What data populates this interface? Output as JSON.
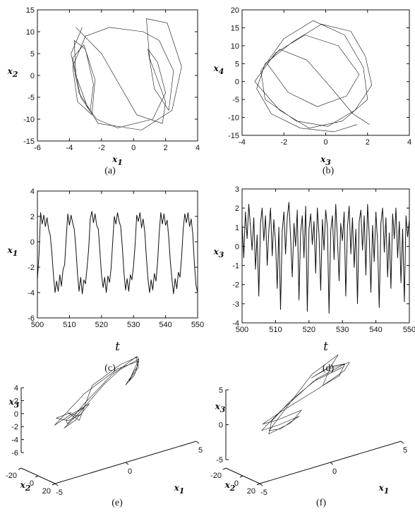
{
  "figure": {
    "panels": [
      "a",
      "b",
      "c",
      "d",
      "e",
      "f"
    ]
  },
  "chart_data": [
    {
      "id": "a",
      "caption": "(a)",
      "type": "line",
      "xlabel": "x1",
      "ylabel": "x2",
      "xlim": [
        -6,
        4
      ],
      "ylim": [
        -15,
        15
      ],
      "xticks": [
        -6,
        -4,
        -2,
        0,
        2,
        4
      ],
      "yticks": [
        -15,
        -10,
        -5,
        0,
        5,
        10,
        15
      ],
      "series": [
        {
          "x": [
            -3.2,
            -3.9,
            -3.4,
            -2.7,
            -2.5,
            -3.0,
            -3.7,
            -3.6,
            -2.9,
            -2.3,
            -1.0,
            1.2,
            2.0,
            1.5,
            0.9,
            1.3,
            2.2,
            2.5,
            1.6,
            0.6,
            -1.5,
            -3.0,
            -3.8,
            -3.5,
            -2.6,
            -2.4,
            -3.1,
            -3.8,
            -3.3,
            -2.2,
            0.5,
            2.4,
            3.0,
            2.1,
            0.8,
            1.0,
            2.0,
            1.8,
            0.2,
            -2.0,
            -3.6
          ],
          "y": [
            11.0,
            5.0,
            -4.0,
            -8.0,
            -2.0,
            6.0,
            8.0,
            0.0,
            -7.0,
            -10.0,
            -12.0,
            -10.0,
            -4.0,
            3.0,
            6.0,
            -3.0,
            -8.0,
            1.0,
            8.0,
            10.0,
            11.0,
            9.0,
            2.0,
            -6.0,
            -9.0,
            -1.0,
            7.0,
            4.0,
            -5.0,
            -11.0,
            -12.5,
            -8.0,
            2.0,
            12.0,
            13.0,
            4.0,
            -6.0,
            -11.0,
            -9.0,
            5.0,
            11.0
          ]
        }
      ]
    },
    {
      "id": "b",
      "caption": "(b)",
      "type": "line",
      "xlabel": "x3",
      "ylabel": "x4",
      "xlim": [
        -4,
        4
      ],
      "ylim": [
        -15,
        20
      ],
      "xticks": [
        -4,
        -2,
        0,
        2,
        4
      ],
      "yticks": [
        -15,
        -10,
        -5,
        0,
        5,
        10,
        15,
        20
      ],
      "series": [
        {
          "x": [
            1.5,
            0.4,
            -1.2,
            -2.6,
            -3.3,
            -2.9,
            -1.6,
            -0.2,
            1.2,
            1.9,
            2.2,
            1.4,
            0.1,
            -1.4,
            -2.9,
            -3.1,
            -2.0,
            -0.6,
            0.9,
            1.8,
            2.0,
            0.8,
            -0.8,
            -2.2,
            -3.4,
            -2.4,
            -1.0,
            0.6,
            1.6,
            1.0,
            -0.4,
            -1.8,
            -2.8,
            -2.2,
            -0.9,
            0.3,
            1.3,
            2.1
          ],
          "y": [
            -12.0,
            -14.0,
            -13.0,
            -9.0,
            -2.0,
            5.0,
            11.0,
            16.0,
            14.0,
            7.0,
            -1.0,
            -8.0,
            -12.5,
            -11.0,
            -5.0,
            3.0,
            12.0,
            17.0,
            13.0,
            4.0,
            -5.0,
            -11.0,
            -13.0,
            -8.0,
            0.0,
            8.0,
            13.0,
            10.0,
            2.0,
            -4.0,
            -7.0,
            -3.0,
            5.0,
            9.0,
            6.0,
            -2.0,
            -9.0,
            -12.0
          ]
        }
      ]
    },
    {
      "id": "c",
      "caption": "(c)",
      "type": "line",
      "xlabel": "t",
      "ylabel": "x1",
      "xlim": [
        500,
        550
      ],
      "ylim": [
        -6,
        4
      ],
      "xticks": [
        500,
        510,
        520,
        530,
        540,
        550
      ],
      "yticks": [
        -6,
        -4,
        -2,
        0,
        2,
        4
      ],
      "series": [
        {
          "x": [
            500.0,
            500.5,
            501.0,
            501.5,
            502.0,
            502.5,
            503.0,
            503.5,
            504.0,
            504.5,
            505.0,
            505.5,
            506.0,
            506.5,
            507.0,
            507.5,
            508.0,
            508.5,
            509.0,
            509.5,
            510.0,
            510.5,
            511.0,
            511.5,
            512.0,
            512.5,
            513.0,
            513.5,
            514.0,
            514.5,
            515.0,
            515.5,
            516.0,
            516.5,
            517.0,
            517.5,
            518.0,
            518.5,
            519.0,
            519.5,
            520.0,
            520.5,
            521.0,
            521.5,
            522.0,
            522.5,
            523.0,
            523.5,
            524.0,
            524.5,
            525.0,
            525.5,
            526.0,
            526.5,
            527.0,
            527.5,
            528.0,
            528.5,
            529.0,
            529.5,
            530.0,
            530.5,
            531.0,
            531.5,
            532.0,
            532.5,
            533.0,
            533.5,
            534.0,
            534.5,
            535.0,
            535.5,
            536.0,
            536.5,
            537.0,
            537.5,
            538.0,
            538.5,
            539.0,
            539.5,
            540.0,
            540.5,
            541.0,
            541.5,
            542.0,
            542.5,
            543.0,
            543.5,
            544.0,
            544.5,
            545.0,
            545.5,
            546.0,
            546.5,
            547.0,
            547.5,
            548.0,
            548.5,
            549.0,
            549.5,
            550.0
          ],
          "y": [
            -3.0,
            -1.0,
            2.3,
            1.4,
            2.1,
            1.2,
            1.9,
            1.0,
            0.5,
            -0.8,
            -2.6,
            -4.0,
            -3.1,
            -3.9,
            -2.6,
            -3.5,
            -2.2,
            -1.8,
            0.4,
            2.2,
            1.3,
            2.1,
            1.5,
            1.0,
            -0.5,
            -2.5,
            -3.9,
            -2.8,
            -4.1,
            -3.0,
            -3.3,
            -2.0,
            -0.6,
            1.8,
            2.4,
            1.5,
            2.2,
            1.3,
            1.0,
            -0.7,
            -2.6,
            -3.6,
            -2.8,
            -4.0,
            -2.7,
            -3.2,
            -2.1,
            0.0,
            2.0,
            1.4,
            2.3,
            1.6,
            1.2,
            -0.4,
            -2.4,
            -3.8,
            -2.9,
            -3.9,
            -2.6,
            -3.0,
            -1.9,
            -0.2,
            2.1,
            1.6,
            2.3,
            1.1,
            1.8,
            0.8,
            -1.2,
            -2.9,
            -4.0,
            -3.0,
            -3.8,
            -2.5,
            -3.1,
            -1.6,
            0.6,
            2.3,
            1.4,
            2.2,
            1.3,
            1.7,
            0.3,
            -1.6,
            -3.0,
            -4.1,
            -2.9,
            -3.7,
            -2.4,
            -2.8,
            -1.2,
            1.0,
            2.2,
            1.5,
            2.3,
            1.2,
            1.8,
            0.6,
            -1.8,
            -3.4,
            -4.0
          ]
        }
      ]
    },
    {
      "id": "d",
      "caption": "(d)",
      "type": "line",
      "xlabel": "t",
      "ylabel": "x3",
      "xlim": [
        500,
        550
      ],
      "ylim": [
        -4,
        3
      ],
      "xticks": [
        500,
        510,
        520,
        530,
        540,
        550
      ],
      "yticks": [
        -4,
        -3,
        -2,
        -1,
        0,
        1,
        2,
        3
      ],
      "series": [
        {
          "x": [
            500.0,
            500.5,
            501.0,
            501.5,
            502.0,
            502.5,
            503.0,
            503.5,
            504.0,
            504.5,
            505.0,
            505.5,
            506.0,
            506.5,
            507.0,
            507.5,
            508.0,
            508.5,
            509.0,
            509.5,
            510.0,
            510.5,
            511.0,
            511.5,
            512.0,
            512.5,
            513.0,
            513.5,
            514.0,
            514.5,
            515.0,
            515.5,
            516.0,
            516.5,
            517.0,
            517.5,
            518.0,
            518.5,
            519.0,
            519.5,
            520.0,
            520.5,
            521.0,
            521.5,
            522.0,
            522.5,
            523.0,
            523.5,
            524.0,
            524.5,
            525.0,
            525.5,
            526.0,
            526.5,
            527.0,
            527.5,
            528.0,
            528.5,
            529.0,
            529.5,
            530.0,
            530.5,
            531.0,
            531.5,
            532.0,
            532.5,
            533.0,
            533.5,
            534.0,
            534.5,
            535.0,
            535.5,
            536.0,
            536.5,
            537.0,
            537.5,
            538.0,
            538.5,
            539.0,
            539.5,
            540.0,
            540.5,
            541.0,
            541.5,
            542.0,
            542.5,
            543.0,
            543.5,
            544.0,
            544.5,
            545.0,
            545.5,
            546.0,
            546.5,
            547.0,
            547.5,
            548.0,
            548.5,
            549.0,
            549.5,
            550.0
          ],
          "y": [
            1.2,
            -0.6,
            1.8,
            0.4,
            2.2,
            1.0,
            -0.2,
            1.5,
            -1.2,
            0.6,
            -2.6,
            1.2,
            2.0,
            0.3,
            1.6,
            -1.0,
            0.8,
            2.0,
            -0.5,
            1.4,
            0.2,
            -2.2,
            1.0,
            -3.3,
            0.8,
            1.8,
            -0.4,
            1.5,
            2.3,
            0.5,
            -1.6,
            1.2,
            0.0,
            1.9,
            -2.8,
            0.7,
            1.6,
            -0.6,
            2.1,
            -3.4,
            0.9,
            1.7,
            0.1,
            1.3,
            -1.4,
            2.0,
            0.6,
            -2.3,
            1.4,
            -0.2,
            1.9,
            1.0,
            -3.5,
            0.8,
            1.6,
            -0.7,
            2.2,
            0.4,
            -1.8,
            1.2,
            0.3,
            1.8,
            -2.6,
            1.0,
            2.1,
            -0.4,
            1.5,
            -1.1,
            0.9,
            -3.0,
            1.3,
            1.9,
            -0.2,
            1.6,
            -1.5,
            2.2,
            0.6,
            -2.4,
            1.1,
            -0.8,
            1.8,
            0.2,
            -3.2,
            1.2,
            2.0,
            -0.3,
            1.5,
            -1.6,
            0.7,
            -2.2,
            1.7,
            0.4,
            2.0,
            -0.6,
            1.3,
            -1.9,
            0.9,
            -2.9,
            1.6,
            0.5,
            1.4
          ]
        }
      ]
    },
    {
      "id": "e",
      "caption": "(e)",
      "type": "line",
      "projection": "3d",
      "xlabel": "x1",
      "ylabel": "x2",
      "zlabel": "x3",
      "xlim": [
        -5,
        5
      ],
      "ylim": [
        -20,
        20
      ],
      "zlim": [
        -6,
        4
      ],
      "xticks": [
        -5,
        0,
        5
      ],
      "yticks": [
        -20,
        0,
        20
      ],
      "zticks": [
        -6,
        -4,
        -2,
        0,
        2,
        4
      ],
      "series": [
        {
          "x": [
            -3.0,
            -3.6,
            -2.4,
            -1.8,
            -2.8,
            -3.5,
            -2.2,
            -0.8,
            1.4,
            2.3,
            1.8,
            0.9,
            1.6,
            2.5,
            1.5,
            0.2,
            -2.0,
            -3.4,
            -2.9,
            -1.6,
            -2.5,
            -3.3,
            -1.0,
            1.2,
            2.2,
            1.4,
            0.6,
            1.9,
            2.4,
            0.8,
            -1.4,
            -3.1,
            -3.5,
            -2.0
          ],
          "y": [
            -6.0,
            2.0,
            8.0,
            3.0,
            -8.0,
            -10.0,
            -2.0,
            6.0,
            10.0,
            4.0,
            -5.0,
            -9.0,
            -3.0,
            6.0,
            11.0,
            8.0,
            2.0,
            -4.0,
            -9.0,
            -4.0,
            5.0,
            9.0,
            12.0,
            9.0,
            1.0,
            -7.0,
            -10.0,
            -2.0,
            7.0,
            10.0,
            5.0,
            -3.0,
            -8.0,
            -5.0
          ],
          "z": [
            -1.5,
            -2.5,
            -4.0,
            -3.2,
            -2.0,
            -1.0,
            -3.5,
            0.5,
            2.0,
            3.0,
            2.2,
            1.0,
            1.8,
            2.4,
            1.2,
            0.0,
            -2.8,
            -3.8,
            -2.6,
            -1.2,
            -3.0,
            -4.2,
            -1.0,
            1.6,
            2.6,
            1.4,
            0.6,
            2.1,
            2.8,
            0.8,
            -1.8,
            -3.4,
            -2.2,
            -1.4
          ]
        }
      ]
    },
    {
      "id": "f",
      "caption": "(f)",
      "type": "line",
      "projection": "3d",
      "xlabel": "x1",
      "ylabel": "x2",
      "zlabel": "x3",
      "xlim": [
        -5,
        5
      ],
      "ylim": [
        -20,
        20
      ],
      "zlim": [
        -5,
        5
      ],
      "xticks": [
        -5,
        0,
        5
      ],
      "yticks": [
        -20,
        0,
        20
      ],
      "zticks": [
        -5,
        0,
        5
      ],
      "series": [
        {
          "x": [
            1.2,
            2.0,
            1.4,
            0.4,
            1.0,
            2.2,
            1.6,
            0.2,
            -1.8,
            -3.0,
            -2.4,
            -1.2,
            -2.2,
            -3.4,
            -2.6,
            -1.0,
            0.8,
            2.1,
            1.3,
            0.3,
            1.4,
            2.3,
            0.6,
            -1.5,
            -3.2,
            -2.8,
            -1.6,
            -2.6,
            -3.3,
            -1.8,
            0.4,
            1.8
          ],
          "y": [
            -10.0,
            -4.0,
            5.0,
            9.0,
            4.0,
            -6.0,
            -10.0,
            -3.0,
            8.0,
            10.0,
            3.0,
            -6.0,
            -10.0,
            -4.0,
            6.0,
            11.0,
            8.0,
            -2.0,
            -9.0,
            -6.0,
            3.0,
            9.0,
            12.0,
            7.0,
            -1.0,
            -8.0,
            -10.0,
            -3.0,
            6.0,
            10.0,
            7.0,
            -4.0
          ],
          "z": [
            2.0,
            3.0,
            2.4,
            1.2,
            2.2,
            3.2,
            2.6,
            0.5,
            -2.2,
            -3.4,
            -2.8,
            -1.6,
            -2.6,
            -3.8,
            -3.0,
            -1.4,
            1.0,
            2.8,
            2.0,
            1.0,
            2.5,
            3.4,
            1.4,
            -1.8,
            -3.6,
            -3.2,
            -2.0,
            -3.0,
            -3.9,
            -2.4,
            0.8,
            2.6
          ]
        }
      ]
    }
  ]
}
